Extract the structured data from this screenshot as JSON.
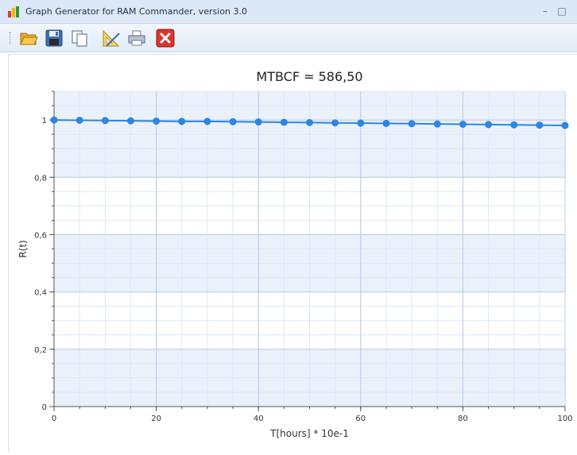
{
  "window": {
    "title": "Graph Generator for RAM Commander, version 3.0",
    "minimize_glyph": "–",
    "maximize_glyph": "□"
  },
  "toolbar": {
    "items": [
      {
        "name": "open-folder-icon",
        "tooltip": ""
      },
      {
        "name": "save-icon",
        "tooltip": ""
      },
      {
        "name": "copy-icon",
        "tooltip": ""
      },
      {
        "name": "ruler-triangle-icon",
        "tooltip": ""
      },
      {
        "name": "print-icon",
        "tooltip": ""
      },
      {
        "name": "close-red-x-icon",
        "tooltip": ""
      }
    ]
  },
  "colors": {
    "series": "#2f86e0",
    "band": "#eaf1fb",
    "major_grid": "#b8cbe6",
    "minor_grid": "#dde7f4",
    "axis": "#555555"
  },
  "chart_data": {
    "type": "line",
    "title": "MTBCF = 586,50",
    "xlabel": "T[hours] * 10e-1",
    "ylabel": "R(t)",
    "xlim": [
      0,
      100
    ],
    "ylim": [
      0,
      1.1
    ],
    "x_ticks": [
      0,
      20,
      40,
      60,
      80,
      100
    ],
    "x_tick_labels": [
      "0",
      "20",
      "40",
      "60",
      "80",
      "100"
    ],
    "y_ticks": [
      0,
      0.2,
      0.4,
      0.6,
      0.8,
      1
    ],
    "y_tick_labels": [
      "0",
      "0,2",
      "0,4",
      "0,6",
      "0,8",
      "1"
    ],
    "grid": true,
    "legend": "none",
    "series": [
      {
        "x": [
          0,
          5,
          10,
          15,
          20,
          25,
          30,
          35,
          40,
          45,
          50,
          55,
          60,
          65,
          70,
          75,
          80,
          85,
          90,
          95,
          100
        ],
        "y": [
          1.0,
          0.999,
          0.998,
          0.997,
          0.996,
          0.995,
          0.995,
          0.994,
          0.993,
          0.992,
          0.991,
          0.99,
          0.989,
          0.988,
          0.987,
          0.986,
          0.985,
          0.984,
          0.983,
          0.982,
          0.981
        ]
      }
    ]
  }
}
